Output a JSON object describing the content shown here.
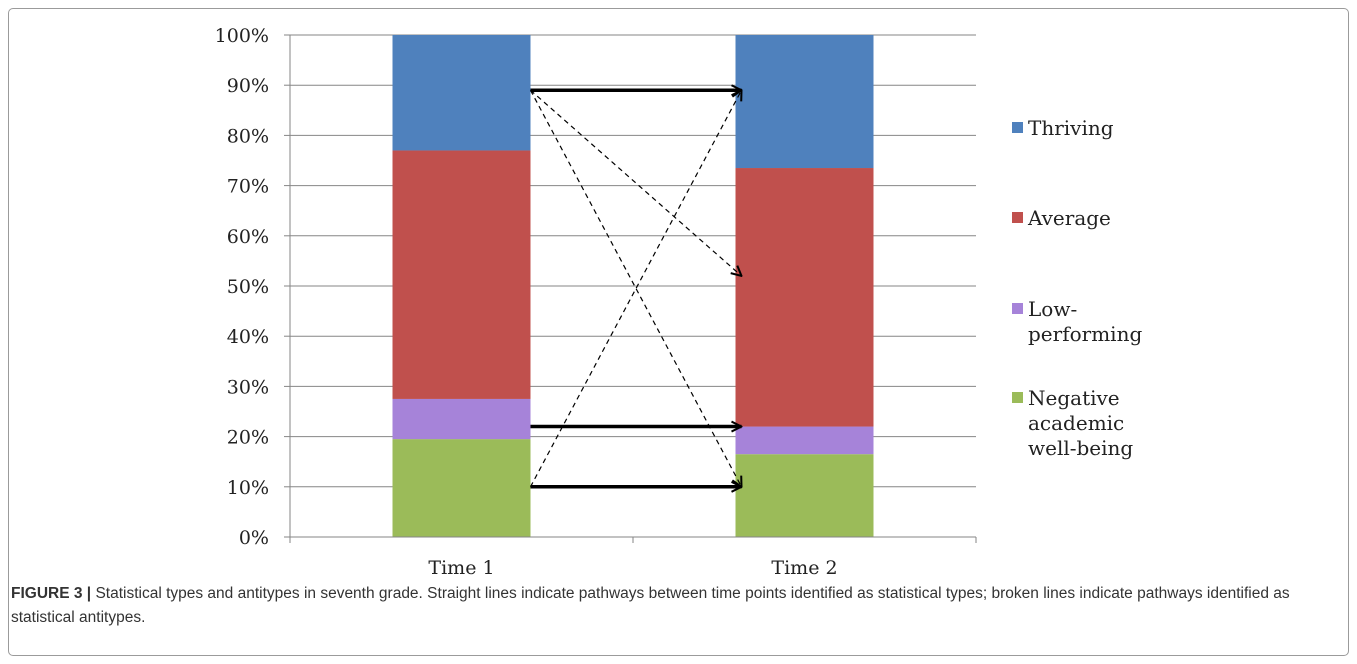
{
  "chart_data": {
    "type": "bar",
    "stacked": true,
    "percent": true,
    "categories": [
      "Time 1",
      "Time 2"
    ],
    "series": [
      {
        "name": "Negative academic well-being",
        "values": [
          19.5,
          16.5
        ],
        "color": "#9bbb59"
      },
      {
        "name": "Low-performing",
        "values": [
          8.0,
          5.5
        ],
        "color": "#a683d9"
      },
      {
        "name": "Average",
        "values": [
          49.5,
          51.5
        ],
        "color": "#c0504d"
      },
      {
        "name": "Thriving",
        "values": [
          23.0,
          26.5
        ],
        "color": "#4f81bd"
      }
    ],
    "ylim": [
      0,
      100
    ],
    "yticks": [
      "0%",
      "10%",
      "20%",
      "30%",
      "40%",
      "50%",
      "60%",
      "70%",
      "80%",
      "90%",
      "100%"
    ],
    "grid": true,
    "legend_position": "right",
    "legend_entries": [
      {
        "label": "Thriving",
        "color": "#4f81bd"
      },
      {
        "label": "Average",
        "color": "#c0504d"
      },
      {
        "label": "Low-performing",
        "color": "#a683d9"
      },
      {
        "label": "Negative academic well-being",
        "color": "#9bbb59"
      }
    ],
    "pathways": [
      {
        "from": "Time 1",
        "from_y": 89,
        "to": "Time 2",
        "to_y": 89,
        "style": "solid"
      },
      {
        "from": "Time 1",
        "from_y": 22,
        "to": "Time 2",
        "to_y": 22,
        "style": "solid"
      },
      {
        "from": "Time 1",
        "from_y": 10,
        "to": "Time 2",
        "to_y": 10,
        "style": "solid"
      },
      {
        "from": "Time 1",
        "from_y": 89,
        "to": "Time 2",
        "to_y": 52,
        "style": "dashed"
      },
      {
        "from": "Time 1",
        "from_y": 89,
        "to": "Time 2",
        "to_y": 10,
        "style": "dashed"
      },
      {
        "from": "Time 1",
        "from_y": 10,
        "to": "Time 2",
        "to_y": 89,
        "style": "dashed"
      }
    ]
  },
  "caption": {
    "label": "FIGURE 3 |",
    "text": " Statistical types and antitypes in seventh grade. Straight lines indicate pathways between time points identified as statistical types; broken lines indicate pathways identified as statistical antitypes."
  }
}
